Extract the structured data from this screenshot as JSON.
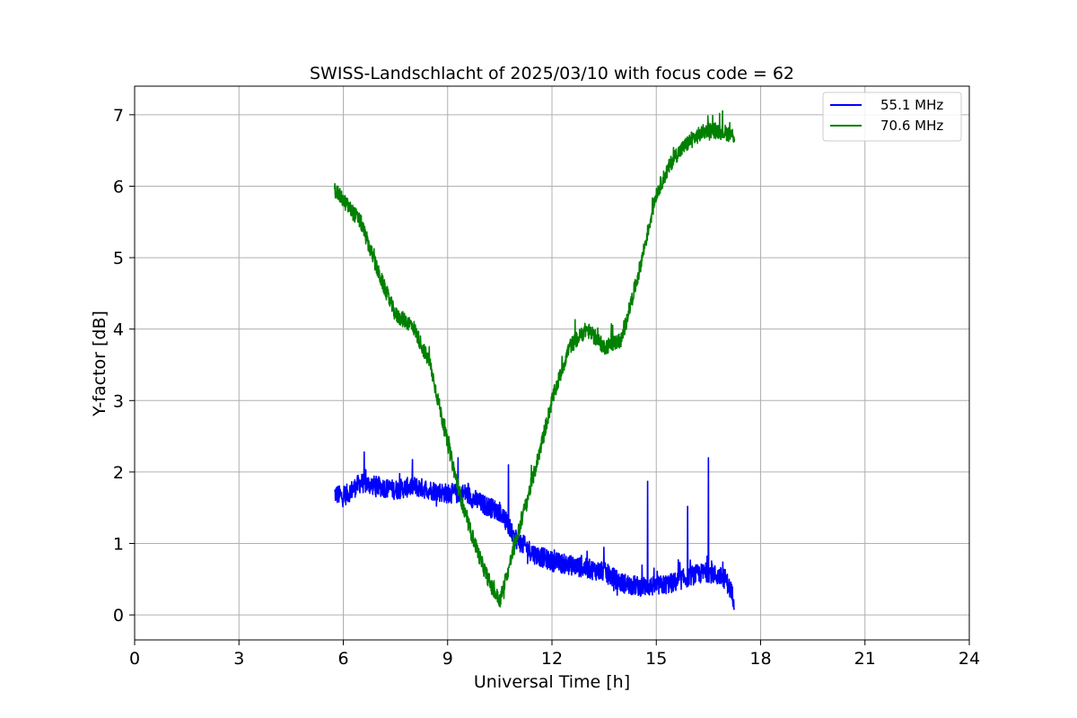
{
  "chart_data": {
    "type": "line",
    "title": "SWISS-Landschlacht of 2025/03/10 with focus code = 62",
    "xlabel": "Universal Time [h]",
    "ylabel": "Y-factor [dB]",
    "xlim": [
      0,
      24
    ],
    "ylim": [
      -0.35,
      7.4
    ],
    "xticks": [
      0,
      3,
      6,
      9,
      12,
      15,
      18,
      21,
      24
    ],
    "xtick_labels": [
      "0",
      "3",
      "6",
      "9",
      "12",
      "15",
      "18",
      "21",
      "24"
    ],
    "yticks": [
      0,
      1,
      2,
      3,
      4,
      5,
      6,
      7
    ],
    "ytick_labels": [
      "0",
      "1",
      "2",
      "3",
      "4",
      "5",
      "6",
      "7"
    ],
    "grid": true,
    "legend_position": "top-right",
    "series": [
      {
        "name": "55.1 MHz",
        "color": "#0000ff",
        "x": [
          5.75,
          6.0,
          6.5,
          7.0,
          7.5,
          8.0,
          8.5,
          9.0,
          9.5,
          10.0,
          10.5,
          10.8,
          11.0,
          11.5,
          12.0,
          12.5,
          13.0,
          13.5,
          14.0,
          14.5,
          15.0,
          15.5,
          16.0,
          16.5,
          17.0,
          17.25
        ],
        "y": [
          1.7,
          1.65,
          1.85,
          1.8,
          1.75,
          1.8,
          1.75,
          1.7,
          1.7,
          1.55,
          1.45,
          1.2,
          1.05,
          0.85,
          0.75,
          0.7,
          0.65,
          0.6,
          0.45,
          0.4,
          0.4,
          0.45,
          0.55,
          0.6,
          0.5,
          0.2
        ],
        "spikes": [
          {
            "x": 6.6,
            "y": 2.28
          },
          {
            "x": 9.3,
            "y": 2.2
          },
          {
            "x": 10.75,
            "y": 2.1
          },
          {
            "x": 14.75,
            "y": 1.87
          },
          {
            "x": 15.9,
            "y": 1.52
          },
          {
            "x": 16.5,
            "y": 2.2
          }
        ]
      },
      {
        "name": "70.6 MHz",
        "color": "#008000",
        "x": [
          5.75,
          6.0,
          6.5,
          7.0,
          7.5,
          8.0,
          8.5,
          9.0,
          9.5,
          10.0,
          10.3,
          10.5,
          10.7,
          11.0,
          11.5,
          12.0,
          12.5,
          13.0,
          13.5,
          14.0,
          14.5,
          15.0,
          15.5,
          16.0,
          16.5,
          17.0,
          17.25
        ],
        "y": [
          5.95,
          5.8,
          5.5,
          4.8,
          4.2,
          4.05,
          3.5,
          2.4,
          1.4,
          0.7,
          0.35,
          0.2,
          0.55,
          1.1,
          2.0,
          3.0,
          3.75,
          4.0,
          3.75,
          3.85,
          4.8,
          5.9,
          6.4,
          6.65,
          6.8,
          6.75,
          6.7
        ]
      }
    ]
  }
}
